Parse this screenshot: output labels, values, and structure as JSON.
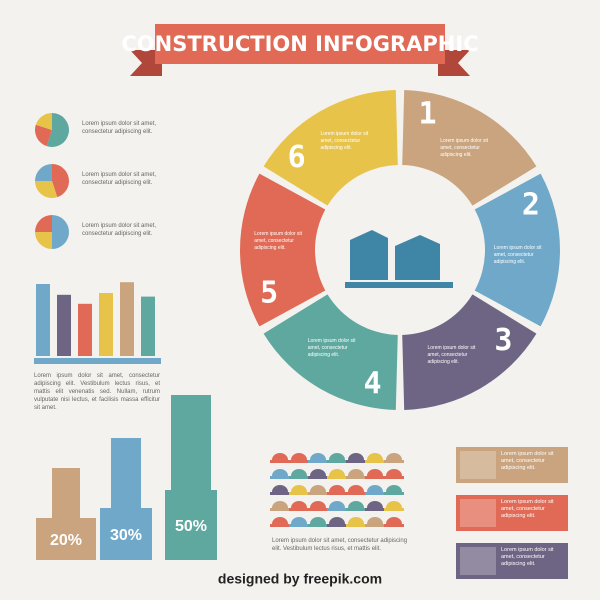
{
  "header": {
    "title": "CONSTRUCTION INFOGRAPHIC"
  },
  "pies": [
    {
      "text": "Lorem ipsum dolor sit amet, consectetur adipiscing elit.",
      "values": [
        55,
        25,
        20
      ],
      "colors": [
        "#5fa8a0",
        "#e06a55",
        "#e8c34a"
      ]
    },
    {
      "text": "Lorem ipsum dolor sit amet, consectetur adipiscing elit.",
      "values": [
        45,
        30,
        25
      ],
      "colors": [
        "#e06a55",
        "#e8c34a",
        "#6fa8c9"
      ]
    },
    {
      "text": "Lorem ipsum dolor sit amet, consectetur adipiscing elit.",
      "values": [
        50,
        25,
        25
      ],
      "colors": [
        "#6fa8c9",
        "#e8c34a",
        "#e06a55"
      ]
    }
  ],
  "bar_chart": {
    "values": [
      80,
      68,
      58,
      70,
      82,
      66
    ],
    "colors": [
      "#6fa8c9",
      "#6e6483",
      "#e06a55",
      "#e8c34a",
      "#c9a47e",
      "#5fa8a0"
    ],
    "ylim": [
      0,
      100
    ],
    "caption": "Lorem ipsum dolor sit amet, consectetur adipiscing elit. Vestibulum lectus risus, et mattis elit venenatis sed. Nullam, rutrum vulputate nisi lectus, et facilisis massa efficitur sit amet."
  },
  "steps": [
    {
      "number": "1",
      "text": "Lorem ipsum dolor sit amet, consectetur adipiscing elit.",
      "color": "#c9a47e"
    },
    {
      "number": "2",
      "text": "Lorem ipsum dolor sit amet, consectetur adipiscing elit.",
      "color": "#6fa8c9"
    },
    {
      "number": "3",
      "text": "Lorem ipsum dolor sit amet, consectetur adipiscing elit.",
      "color": "#6e6483"
    },
    {
      "number": "4",
      "text": "Lorem ipsum dolor sit amet, consectetur adipiscing elit.",
      "color": "#5fa8a0"
    },
    {
      "number": "5",
      "text": "Lorem ipsum dolor sit amet, consectetur adipiscing elit.",
      "color": "#e06a55"
    },
    {
      "number": "6",
      "text": "Lorem ipsum dolor sit amet, consectetur adipiscing elit.",
      "color": "#e8c34a"
    }
  ],
  "buildings": [
    {
      "label": "20%"
    },
    {
      "label": "30%"
    },
    {
      "label": "50%"
    }
  ],
  "hats_caption": "Lorem ipsum dolor sit amet, consectetur adipiscing elit. Vestibulum lectus risus, et mattis elit.",
  "legend": [
    {
      "text": "Lorem ipsum dolor sit amet, consectetur adipiscing elit."
    },
    {
      "text": "Lorem ipsum dolor sit amet, consectetur adipiscing elit."
    },
    {
      "text": "Lorem ipsum dolor sit amet, consectetur adipiscing elit."
    }
  ],
  "footer": "designed by freepik.com"
}
